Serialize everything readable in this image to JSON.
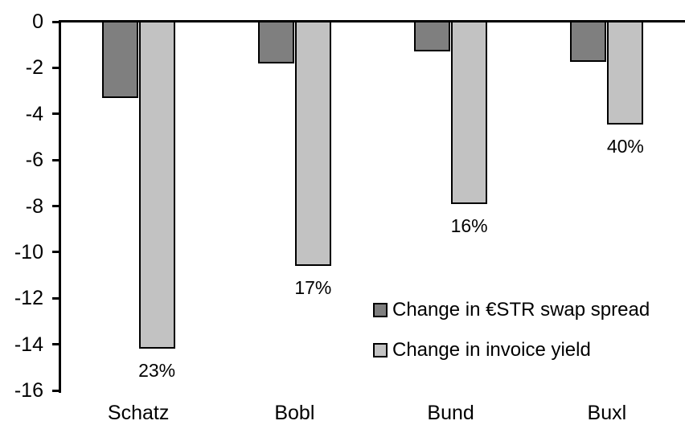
{
  "chart_data": {
    "type": "bar",
    "categories": [
      "Schatz",
      "Bobl",
      "Bund",
      "Buxl"
    ],
    "series": [
      {
        "name": "Change in €STR swap spread",
        "color": "#7f7f7f",
        "values": [
          -3.3,
          -1.8,
          -1.3,
          -1.75
        ]
      },
      {
        "name": "Change in invoice yield",
        "color": "#c2c2c2",
        "values": [
          -14.2,
          -10.6,
          -7.9,
          -4.45
        ],
        "data_labels": [
          "23%",
          "17%",
          "16%",
          "40%"
        ]
      }
    ],
    "title": "",
    "xlabel": "",
    "ylabel": "",
    "ylim": [
      -16,
      0
    ],
    "yticks": [
      0,
      -2,
      -4,
      -6,
      -8,
      -10,
      -12,
      -14,
      -16
    ],
    "grid": false,
    "legend_position": "inside-center-right",
    "bar_outline_color": "#000000",
    "background_color": "#ffffff",
    "text_color": "#000000"
  }
}
